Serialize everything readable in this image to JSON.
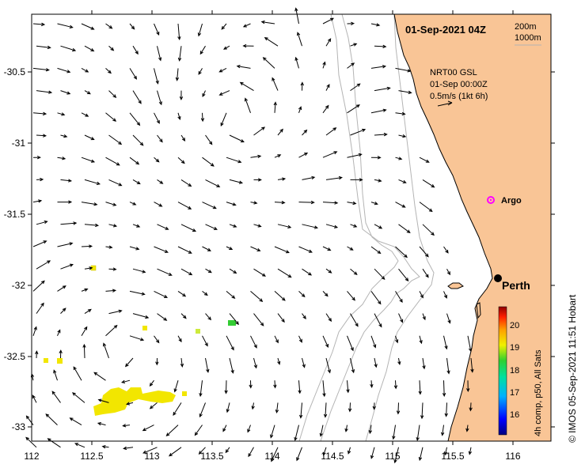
{
  "title": "01-Sep-2021 04Z",
  "depth_contours": [
    "200m",
    "1000m"
  ],
  "legend": {
    "product": "NRT00 GSL",
    "time": "01-Sep 00:00Z",
    "scale": "0.5m/s (1kt 6h)"
  },
  "places": {
    "argo": "Argo",
    "city": "Perth"
  },
  "colorbar": {
    "ticks": [
      "20",
      "19",
      "18",
      "17",
      "16"
    ],
    "caption": "4h comp, p50, All Sats"
  },
  "credit": "© IMOS 05-Sep-2021 11:51 Hobart",
  "axes": {
    "x_ticks": [
      "112",
      "112.5",
      "113",
      "113.5",
      "114",
      "114.5",
      "115",
      "115.5",
      "116"
    ],
    "y_ticks": [
      "-30.5",
      "-31",
      "-31.5",
      "-32",
      "-32.5",
      "-33"
    ]
  },
  "colors": {
    "land": "#f9c596",
    "contour": "#b4b4b4",
    "argo": "#ff00ff",
    "sst_yellow": "#f2e600",
    "sst_green": "#33cc33"
  }
}
